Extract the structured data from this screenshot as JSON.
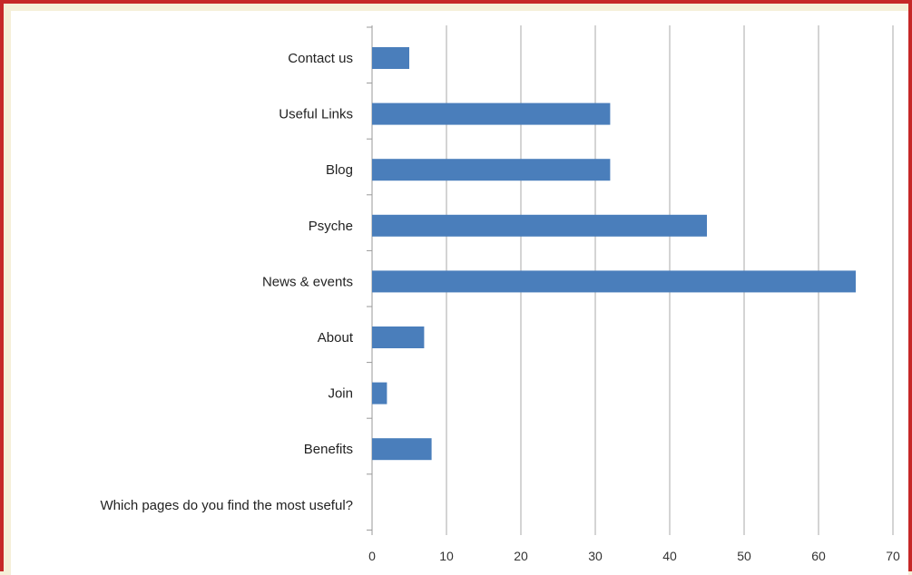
{
  "chart_data": {
    "type": "bar",
    "orientation": "horizontal",
    "categories": [
      "Which pages do you find the most useful?",
      "Benefits",
      "Join",
      "About",
      "News & events",
      "Psyche",
      "Blog",
      "Useful Links",
      "Contact us"
    ],
    "values": [
      null,
      8,
      2,
      7,
      65,
      45,
      32,
      32,
      5
    ],
    "xlim": [
      0,
      70
    ],
    "xticks": [
      0,
      10,
      20,
      30,
      40,
      50,
      60,
      70
    ],
    "grid": "vertical",
    "bar_color": "#4a7ebb",
    "title": "",
    "xlabel": "",
    "ylabel": ""
  },
  "colors": {
    "frame_border": "#c62828",
    "background": "#f5efd8",
    "gridline": "#aaaaaa"
  }
}
